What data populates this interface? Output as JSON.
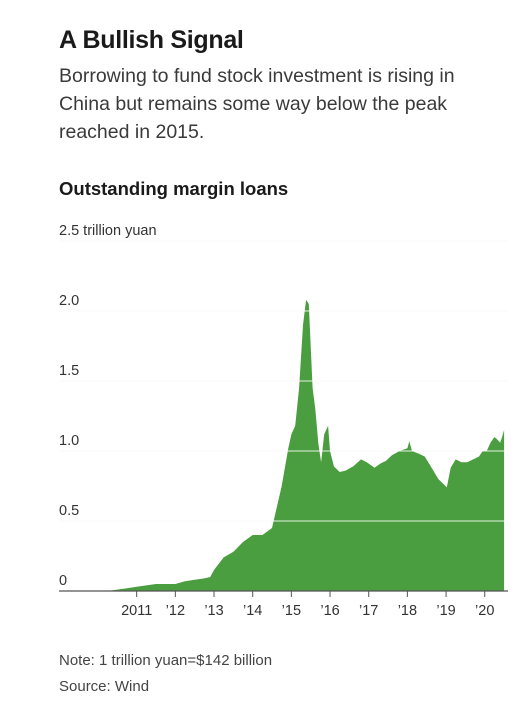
{
  "headline": "A Bullish Signal",
  "dek": "Borrowing to fund stock investment is rising in China but remains some way below the peak reached in 2015.",
  "note": "Note: 1 trillion yuan=$142 billion",
  "source": "Source: Wind",
  "colors": {
    "area": "#4a9e3f",
    "gridline": "#d4d4d4",
    "baseline": "#555555"
  },
  "chart_data": {
    "type": "area",
    "title": "Outstanding margin loans",
    "unit": "trillion yuan",
    "xlim": [
      2010.0,
      2020.55
    ],
    "ylim": [
      0,
      2.5
    ],
    "grid": true,
    "y_ticks": [
      {
        "value": 2.5,
        "label": "2.5 trillion yuan"
      },
      {
        "value": 2.0,
        "label": "2.0"
      },
      {
        "value": 1.5,
        "label": "1.5"
      },
      {
        "value": 1.0,
        "label": "1.0"
      },
      {
        "value": 0.5,
        "label": "0.5"
      },
      {
        "value": 0,
        "label": "0"
      }
    ],
    "x_ticks": [
      {
        "value": 2011,
        "label": "2011"
      },
      {
        "value": 2012,
        "label": "’12"
      },
      {
        "value": 2013,
        "label": "’13"
      },
      {
        "value": 2014,
        "label": "’14"
      },
      {
        "value": 2015,
        "label": "’15"
      },
      {
        "value": 2016,
        "label": "’16"
      },
      {
        "value": 2017,
        "label": "’17"
      },
      {
        "value": 2018,
        "label": "’18"
      },
      {
        "value": 2019,
        "label": "’19"
      },
      {
        "value": 2020,
        "label": "’20"
      }
    ],
    "series": [
      {
        "points": [
          [
            2010.25,
            0.0
          ],
          [
            2010.5,
            0.01
          ],
          [
            2010.75,
            0.02
          ],
          [
            2011.0,
            0.03
          ],
          [
            2011.25,
            0.04
          ],
          [
            2011.5,
            0.05
          ],
          [
            2011.75,
            0.05
          ],
          [
            2012.0,
            0.05
          ],
          [
            2012.25,
            0.07
          ],
          [
            2012.5,
            0.08
          ],
          [
            2012.75,
            0.09
          ],
          [
            2012.9,
            0.1
          ],
          [
            2013.0,
            0.15
          ],
          [
            2013.25,
            0.24
          ],
          [
            2013.5,
            0.28
          ],
          [
            2013.75,
            0.35
          ],
          [
            2014.0,
            0.4
          ],
          [
            2014.25,
            0.4
          ],
          [
            2014.5,
            0.45
          ],
          [
            2014.75,
            0.75
          ],
          [
            2014.92,
            1.02
          ],
          [
            2015.0,
            1.12
          ],
          [
            2015.1,
            1.18
          ],
          [
            2015.2,
            1.45
          ],
          [
            2015.3,
            1.9
          ],
          [
            2015.38,
            2.08
          ],
          [
            2015.45,
            2.05
          ],
          [
            2015.55,
            1.45
          ],
          [
            2015.62,
            1.3
          ],
          [
            2015.7,
            1.05
          ],
          [
            2015.77,
            0.92
          ],
          [
            2015.85,
            1.12
          ],
          [
            2015.95,
            1.18
          ],
          [
            2016.0,
            1.0
          ],
          [
            2016.1,
            0.89
          ],
          [
            2016.25,
            0.85
          ],
          [
            2016.4,
            0.86
          ],
          [
            2016.6,
            0.89
          ],
          [
            2016.8,
            0.94
          ],
          [
            2016.95,
            0.92
          ],
          [
            2017.15,
            0.88
          ],
          [
            2017.3,
            0.91
          ],
          [
            2017.45,
            0.93
          ],
          [
            2017.6,
            0.97
          ],
          [
            2017.8,
            1.0
          ],
          [
            2018.0,
            1.02
          ],
          [
            2018.05,
            1.07
          ],
          [
            2018.12,
            1.0
          ],
          [
            2018.3,
            0.98
          ],
          [
            2018.45,
            0.96
          ],
          [
            2018.65,
            0.87
          ],
          [
            2018.8,
            0.8
          ],
          [
            2018.95,
            0.76
          ],
          [
            2019.02,
            0.74
          ],
          [
            2019.12,
            0.88
          ],
          [
            2019.25,
            0.94
          ],
          [
            2019.4,
            0.92
          ],
          [
            2019.55,
            0.92
          ],
          [
            2019.7,
            0.94
          ],
          [
            2019.85,
            0.96
          ],
          [
            2019.95,
            1.0
          ],
          [
            2020.05,
            1.0
          ],
          [
            2020.15,
            1.06
          ],
          [
            2020.25,
            1.1
          ],
          [
            2020.33,
            1.08
          ],
          [
            2020.4,
            1.06
          ],
          [
            2020.45,
            1.1
          ],
          [
            2020.5,
            1.15
          ]
        ]
      }
    ]
  }
}
